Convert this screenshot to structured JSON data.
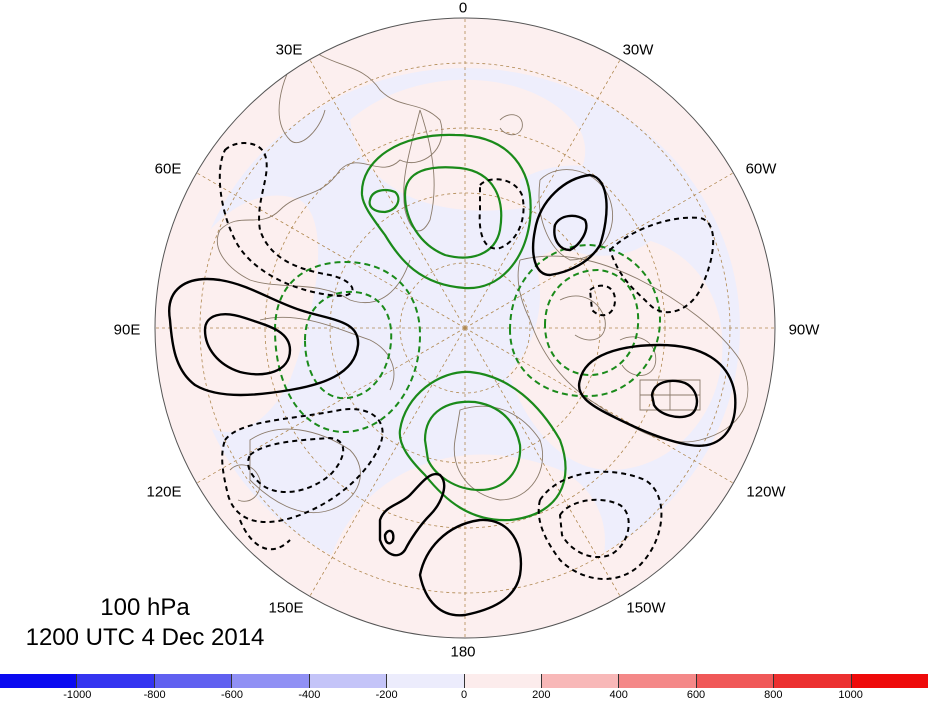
{
  "title": {
    "level": "100 hPa",
    "time": "1200 UTC 4 Dec 2014"
  },
  "longitude_labels": [
    {
      "id": "0",
      "text": "0"
    },
    {
      "id": "30W",
      "text": "30W"
    },
    {
      "id": "60W",
      "text": "60W"
    },
    {
      "id": "90W",
      "text": "90W"
    },
    {
      "id": "120W",
      "text": "120W"
    },
    {
      "id": "150W",
      "text": "150W"
    },
    {
      "id": "180",
      "text": "180"
    },
    {
      "id": "150E",
      "text": "150E"
    },
    {
      "id": "120E",
      "text": "120E"
    },
    {
      "id": "90E",
      "text": "90E"
    },
    {
      "id": "60E",
      "text": "60E"
    },
    {
      "id": "30E",
      "text": "30E"
    }
  ],
  "colorbar": {
    "labels": [
      "-1000",
      "-800",
      "-600",
      "-400",
      "-200",
      "0",
      "200",
      "400",
      "600",
      "800",
      "1000"
    ],
    "colors": [
      "#0a0af0",
      "#3434f0",
      "#6060f0",
      "#9090f4",
      "#c4c4f8",
      "#ececfc",
      "#fcecec",
      "#f8b8b8",
      "#f48888",
      "#f05858",
      "#ec3030",
      "#ee0a0a"
    ]
  },
  "colors": {
    "background_blue": "#eeeefc",
    "background_pink": "#fcefef",
    "coastline": "#8b7b6b",
    "grid": "#b08850",
    "positive_contour": "#1a8a1a",
    "negative_contour": "#000000"
  }
}
